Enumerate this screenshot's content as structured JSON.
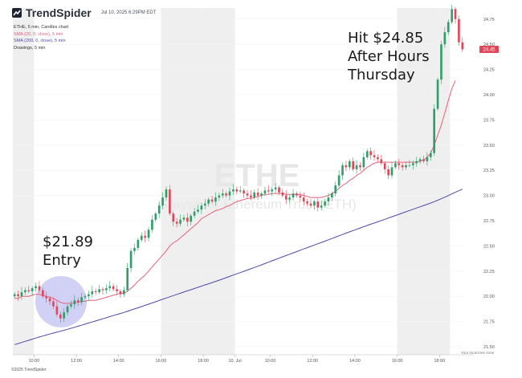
{
  "header": {
    "brand": "TrendSpider",
    "timestamp": "Jul 10, 2025 6:29PM EDT"
  },
  "legend": {
    "symbol_line": "ETHE, 5 min, Candles chart",
    "sma20": "SMA (20, 0, close), 5 min",
    "sma200": "SMA (200, 0, close), 5 min",
    "drawings": "Drawings, 5 min"
  },
  "footer": {
    "copyright": "©2025 TrendSpider"
  },
  "axis_note": "Your local time zone",
  "watermark": {
    "symbol": "ETHE",
    "name": "Grayscale Ethereum Trust (ETH)"
  },
  "annotations": {
    "entry": [
      "$21.89",
      "Entry"
    ],
    "exit": [
      "Hit $24.85",
      "After Hours",
      "Thursday"
    ]
  },
  "colors": {
    "up": "#2e9e6a",
    "down": "#e0485a",
    "sma20": "#e8607a",
    "sma200": "#4b4ba8",
    "session_shade": "#efefef",
    "price_badge": "#e0485a",
    "entry_circle": "#c9c8f3"
  },
  "chart_data": {
    "type": "candlestick",
    "y_axis": {
      "ticks": [
        21.5,
        21.75,
        22.0,
        22.25,
        22.5,
        22.75,
        23.0,
        23.25,
        23.5,
        23.75,
        24.0,
        24.25,
        24.5,
        24.75
      ],
      "labels": [
        "21.50",
        "21.75",
        "22.00",
        "22.25",
        "22.50",
        "22.75",
        "23.00",
        "23.25",
        "23.50",
        "23.75",
        "24.00",
        "24.25",
        "24.50",
        "24.75"
      ],
      "range": [
        21.42,
        24.86
      ]
    },
    "x_axis": {
      "labels": [
        "10:00",
        "12:00",
        "14:00",
        "16:00",
        "18:00",
        "10. Jul",
        "10:00",
        "12:00",
        "14:00",
        "16:00",
        "18:00"
      ]
    },
    "last_price_label": "24.45",
    "last_price": 24.45,
    "segments": [
      {
        "kind": "ext",
        "label": "",
        "bars": 6
      },
      {
        "kind": "reg",
        "label": "10:00",
        "bars": 12
      },
      {
        "kind": "reg",
        "label": "12:00",
        "bars": 12
      },
      {
        "kind": "reg",
        "label": "14:00",
        "bars": 12
      },
      {
        "kind": "ext",
        "label": "16:00",
        "bars": 12
      },
      {
        "kind": "ext",
        "label": "18:00",
        "bars": 9
      },
      {
        "kind": "reg",
        "label": "10. Jul",
        "bars": 10
      },
      {
        "kind": "reg",
        "label": "10:00",
        "bars": 12
      },
      {
        "kind": "reg",
        "label": "12:00",
        "bars": 12
      },
      {
        "kind": "reg",
        "label": "14:00",
        "bars": 12
      },
      {
        "kind": "ext",
        "label": "16:00",
        "bars": 12
      },
      {
        "kind": "ext",
        "label": "18:00",
        "bars": 3
      }
    ],
    "close": [
      22.02,
      22.0,
      22.04,
      22.06,
      22.05,
      22.08,
      22.1,
      22.06,
      22.0,
      21.98,
      21.95,
      21.9,
      21.82,
      21.78,
      21.84,
      21.9,
      21.92,
      21.96,
      21.94,
      21.99,
      22.0,
      22.02,
      22.05,
      22.04,
      22.07,
      22.06,
      22.08,
      22.1,
      22.07,
      22.05,
      22.02,
      22.06,
      22.28,
      22.45,
      22.48,
      22.56,
      22.6,
      22.58,
      22.66,
      22.76,
      22.82,
      22.9,
      22.98,
      23.06,
      22.82,
      22.74,
      22.72,
      22.76,
      22.78,
      22.74,
      22.8,
      22.84,
      22.86,
      22.9,
      22.92,
      22.96,
      22.94,
      22.98,
      23.0,
      23.02,
      23.0,
      23.04,
      23.06,
      23.04,
      23.05,
      23.02,
      23.0,
      22.98,
      23.03,
      23.0,
      23.02,
      23.05,
      23.04,
      23.06,
      23.08,
      23.03,
      23.0,
      22.96,
      22.98,
      23.02,
      23.0,
      22.98,
      22.94,
      22.92,
      22.9,
      22.94,
      22.88,
      22.9,
      22.94,
      22.98,
      23.02,
      23.1,
      23.2,
      23.3,
      23.28,
      23.34,
      23.26,
      23.3,
      23.28,
      23.38,
      23.44,
      23.4,
      23.38,
      23.36,
      23.32,
      23.26,
      23.2,
      23.28,
      23.32,
      23.3,
      23.28,
      23.3,
      23.3,
      23.32,
      23.34,
      23.36,
      23.34,
      23.38,
      23.42,
      23.86,
      24.15,
      24.5,
      24.62,
      24.72,
      24.85,
      24.75,
      24.52,
      24.45
    ],
    "sma20": [
      21.98,
      21.98,
      22.0,
      22.0,
      22.0,
      22.01,
      22.02,
      22.02,
      22.01,
      22.0,
      21.99,
      21.98,
      21.96,
      21.94,
      21.93,
      21.93,
      21.93,
      21.94,
      21.94,
      21.95,
      21.95,
      21.96,
      21.96,
      21.96,
      21.97,
      21.98,
      21.99,
      22.0,
      22.01,
      22.02,
      22.03,
      22.03,
      22.05,
      22.08,
      22.11,
      22.15,
      22.18,
      22.21,
      22.25,
      22.29,
      22.33,
      22.37,
      22.41,
      22.45,
      22.5,
      22.53,
      22.55,
      22.58,
      22.61,
      22.64,
      22.67,
      22.7,
      22.73,
      22.77,
      22.79,
      22.81,
      22.83,
      22.85,
      22.86,
      22.87,
      22.89,
      22.9,
      22.92,
      22.94,
      22.95,
      22.96,
      22.97,
      22.97,
      22.98,
      22.99,
      23.0,
      23.01,
      23.01,
      23.02,
      23.02,
      23.02,
      23.02,
      23.01,
      23.01,
      23.01,
      23.01,
      23.01,
      23.0,
      22.99,
      22.98,
      22.98,
      22.98,
      22.98,
      22.99,
      23.0,
      23.02,
      23.04,
      23.07,
      23.1,
      23.12,
      23.15,
      23.17,
      23.2,
      23.22,
      23.25,
      23.28,
      23.3,
      23.32,
      23.33,
      23.33,
      23.33,
      23.33,
      23.33,
      23.33,
      23.33,
      23.33,
      23.33,
      23.33,
      23.33,
      23.33,
      23.34,
      23.35,
      23.38,
      23.42,
      23.5,
      23.6,
      23.7,
      23.82,
      23.94,
      24.06,
      24.14
    ]
  }
}
